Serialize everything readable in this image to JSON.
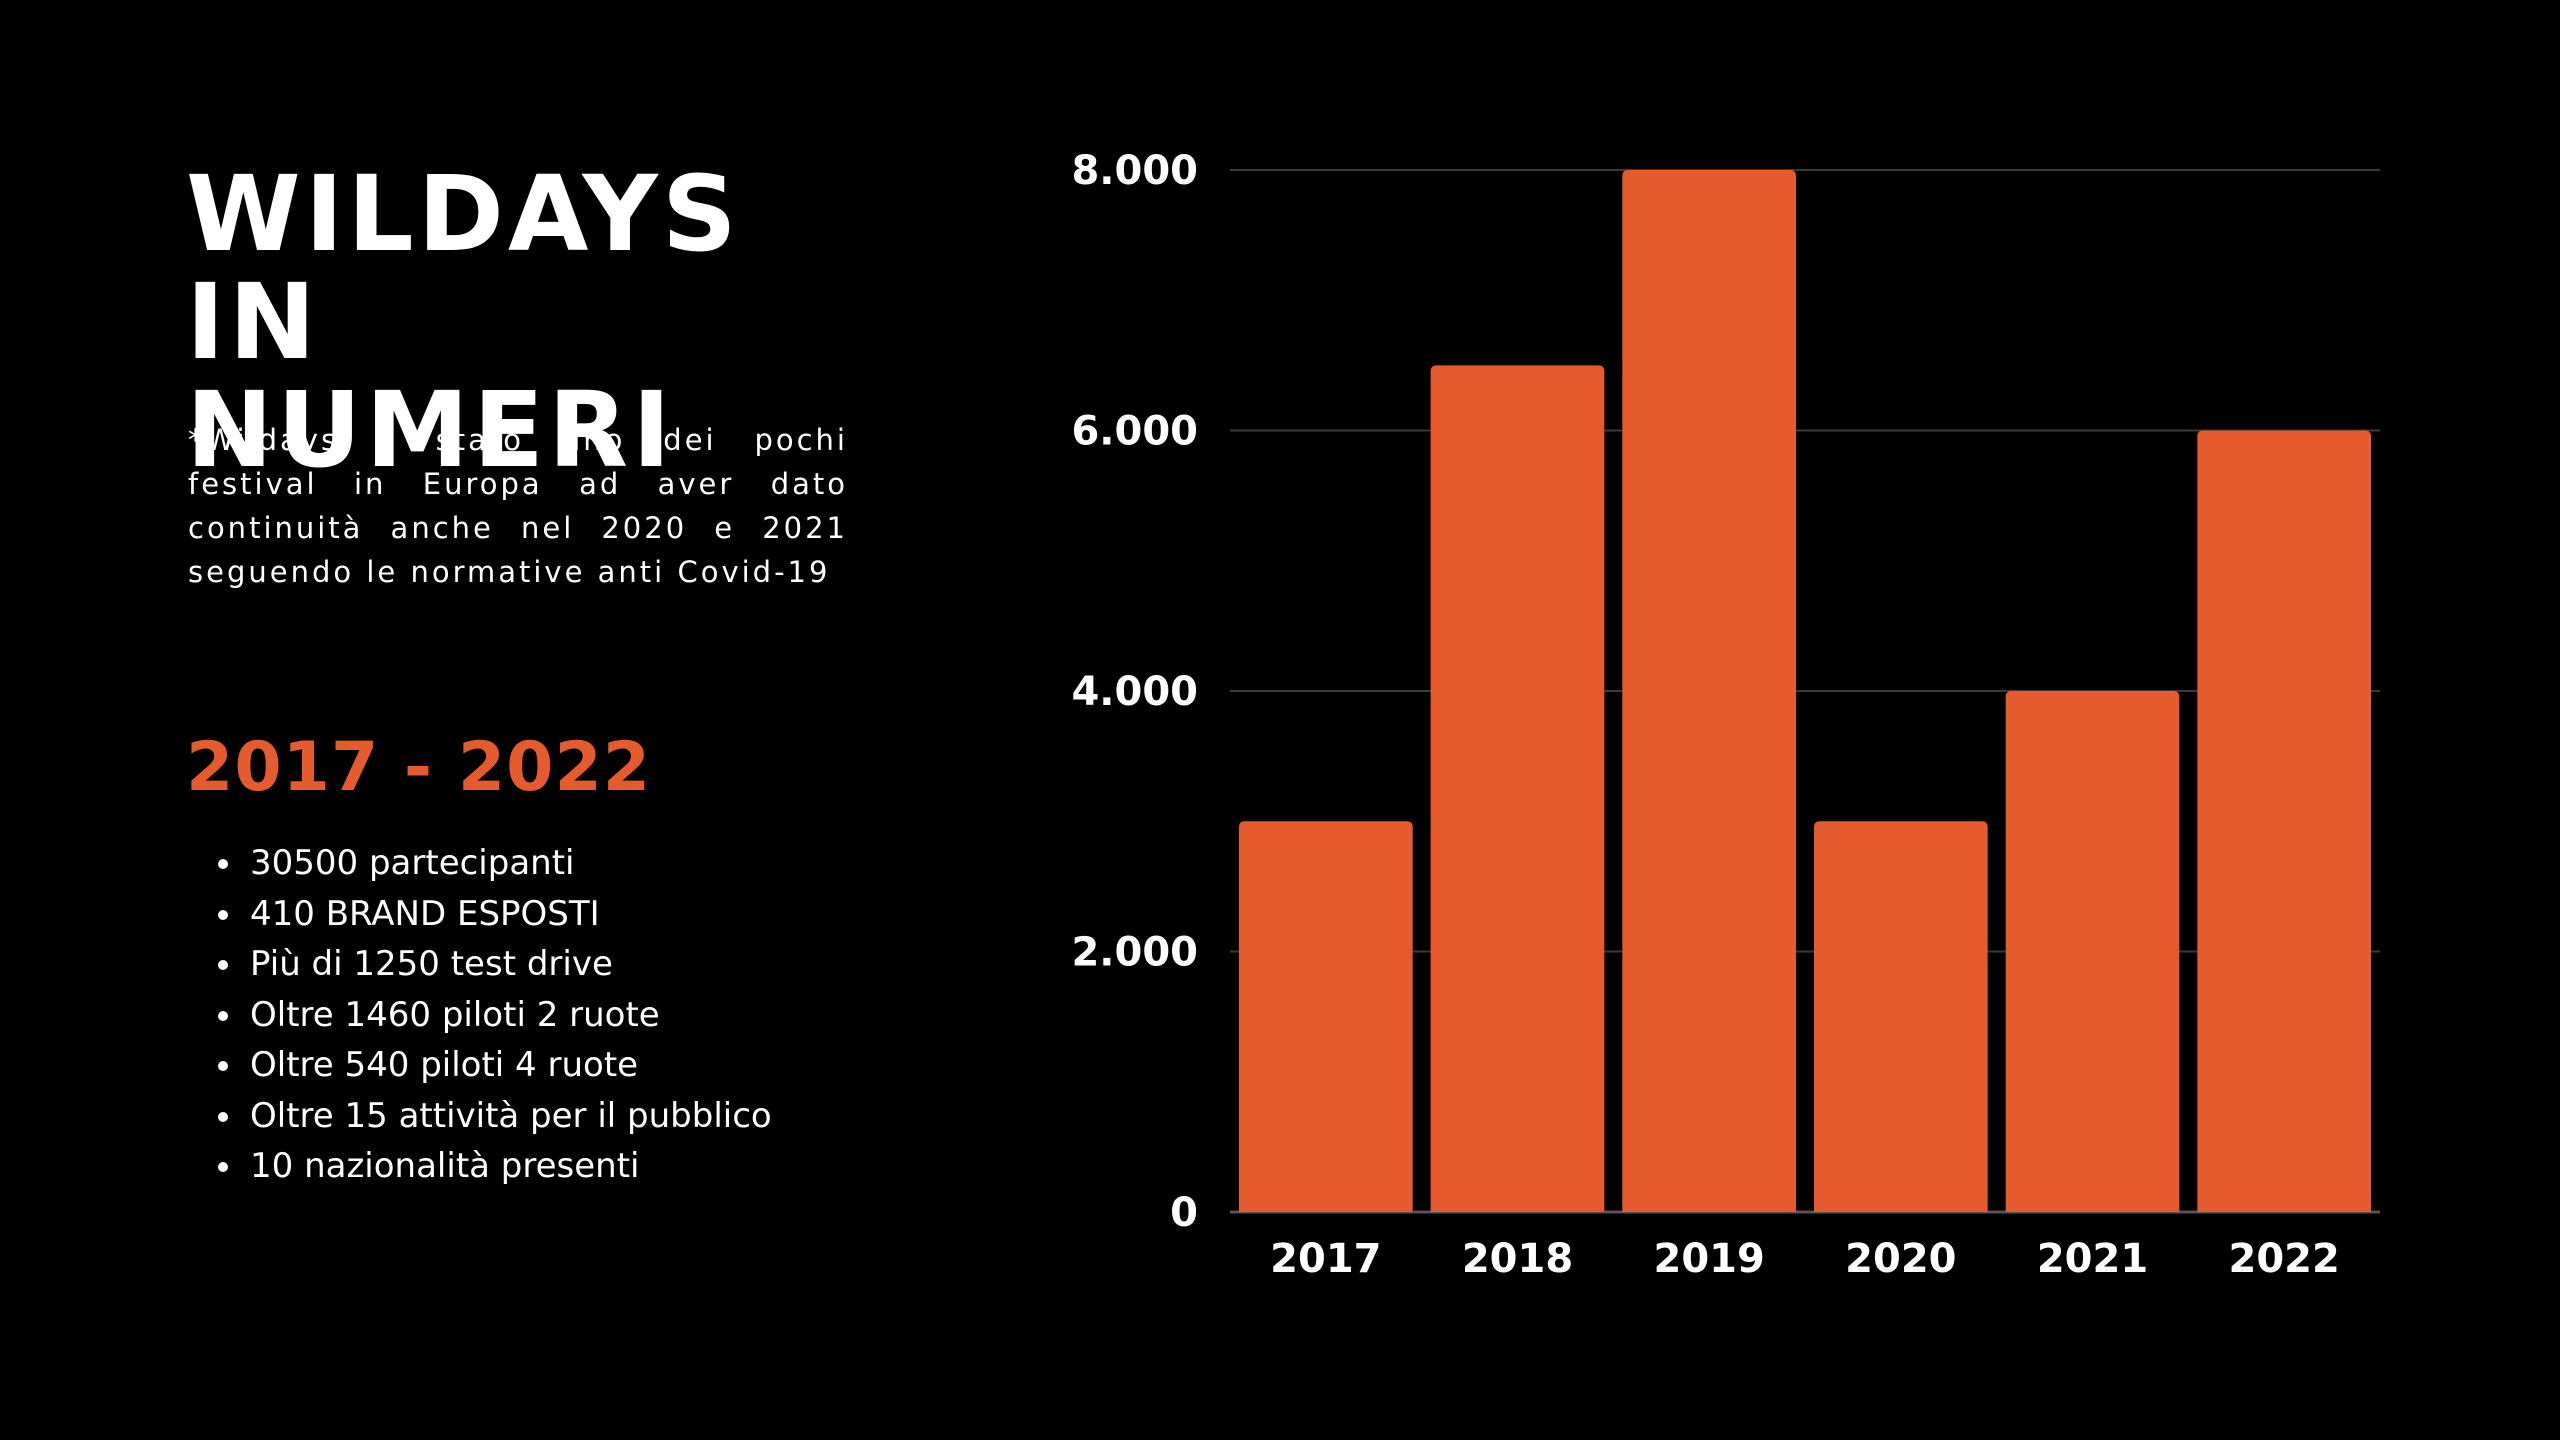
{
  "heading": {
    "line1": "WILDAYS IN",
    "line2": "NUMERI"
  },
  "note": "*Wildays è stato uno dei pochi festival in Europa ad aver dato continuità anche nel 2020 e 2021 seguendo le normative anti Covid-19",
  "range": "2017 - 2022",
  "facts": [
    "30500 partecipanti",
    "410 BRAND ESPOSTI",
    "Più di 1250 test drive",
    "Oltre 1460 piloti 2 ruote",
    "Oltre 540 piloti 4 ruote",
    "Oltre 15 attività per il pubblico",
    "10 nazionalità presenti"
  ],
  "colors": {
    "background": "#000000",
    "accent": "#E55B2D",
    "text": "#FFFFFF",
    "grid": "#3a3a3a"
  },
  "chart_data": {
    "type": "bar",
    "categories": [
      "2017",
      "2018",
      "2019",
      "2020",
      "2021",
      "2022"
    ],
    "values": [
      3000,
      6500,
      8000,
      3000,
      4000,
      6000
    ],
    "ylim": [
      0,
      8000
    ],
    "yticks": [
      0,
      2000,
      4000,
      6000,
      8000
    ],
    "ytick_labels": [
      "0",
      "2.000",
      "4.000",
      "6.000",
      "8.000"
    ],
    "title": "",
    "xlabel": "",
    "ylabel": "",
    "grid": true
  }
}
